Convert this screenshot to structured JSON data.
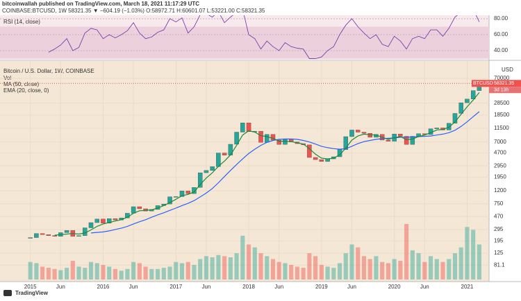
{
  "header": {
    "published": "bitcoinwallah published on TradingView.com, March 18, 2021 11:17:29 UTC",
    "symbol_line": "COINBASE:BTCUSD, 1W  58321.35  ▼ −604.19 (−1.03%)  O:58972.71  H:60601.07  L:53221.00  C:58321.35"
  },
  "footer": "TradingView",
  "chart_data": [
    {
      "type": "line",
      "title": "RSI (14, close)",
      "color": "#7b3fb0",
      "ylim": [
        28.7,
        84.3
      ],
      "yticks": [
        {
          "value": 80,
          "label": "80.00"
        },
        {
          "value": 60,
          "label": "60.00"
        },
        {
          "value": 40,
          "label": "40.00"
        }
      ],
      "band": [
        30,
        70
      ],
      "values": [
        null,
        null,
        null,
        38,
        42,
        47,
        55,
        40,
        44,
        62,
        68,
        66,
        55,
        60,
        56,
        60,
        65,
        75,
        62,
        55,
        57,
        63,
        66,
        80,
        76,
        81,
        62,
        70,
        85,
        86,
        82,
        89,
        75,
        82,
        88,
        92,
        60,
        55,
        42,
        52,
        45,
        40,
        50,
        45,
        43,
        42,
        30,
        30,
        32,
        40,
        45,
        60,
        72,
        80,
        70,
        62,
        55,
        60,
        48,
        45,
        58,
        52,
        42,
        55,
        58,
        55,
        66,
        66,
        58,
        68,
        82,
        88,
        90,
        92,
        76
      ]
    },
    {
      "type": "candlestick",
      "title": "Bitcoin / U.S. Dollar, 1W, COINBASE",
      "symbol": "BTCUSD",
      "last_price": 58321.35,
      "countdown": "3d 13h",
      "currency": "USD",
      "log_scale": true,
      "up_color": "#26a69a",
      "down_color": "#ef5350",
      "ylim": [
        52,
        110000
      ],
      "xlim": [
        -5,
        75.5
      ],
      "yticks": [
        70000,
        28500,
        18500,
        11500,
        7000,
        4700,
        2950,
        1950,
        1200,
        750,
        470,
        295,
        195,
        125,
        {
          "value": 81.1,
          "label": "81.1"
        }
      ],
      "xticks": [
        {
          "value": 0,
          "label": "2015"
        },
        {
          "value": 5,
          "label": "Jun"
        },
        {
          "value": 12,
          "label": "2016"
        },
        {
          "value": 17,
          "label": "Jun"
        },
        {
          "value": 24,
          "label": "2017"
        },
        {
          "value": 29,
          "label": "Jun"
        },
        {
          "value": 36,
          "label": "2018"
        },
        {
          "value": 41,
          "label": "Jun"
        },
        {
          "value": 48,
          "label": "2019"
        },
        {
          "value": 53,
          "label": "Jun"
        },
        {
          "value": 60,
          "label": "2020"
        },
        {
          "value": 65,
          "label": "Jun"
        },
        {
          "value": 72,
          "label": "2021"
        }
      ],
      "values": [
        220,
        255,
        245,
        236,
        230,
        263,
        285,
        230,
        236,
        313,
        378,
        430,
        370,
        437,
        416,
        448,
        531,
        673,
        624,
        575,
        609,
        700,
        742,
        963,
        970,
        1190,
        1080,
        1350,
        2300,
        2500,
        2870,
        4700,
        4340,
        6450,
        10000,
        14000,
        10200,
        10300,
        6900,
        9200,
        7500,
        6400,
        7700,
        7000,
        6600,
        6300,
        4000,
        3700,
        3450,
        3800,
        4100,
        5300,
        8500,
        10800,
        10000,
        9600,
        8300,
        9200,
        7500,
        7200,
        9350,
        8600,
        6400,
        8600,
        9450,
        9150,
        11300,
        11650,
        10800,
        13800,
        19700,
        29000,
        33100,
        45000,
        58321.35
      ],
      "series": [
        {
          "name": "Vol",
          "axis": "volume",
          "values": [
            30,
            28,
            22,
            20,
            18,
            16,
            20,
            32,
            22,
            20,
            30,
            28,
            25,
            22,
            18,
            15,
            18,
            30,
            28,
            22,
            18,
            18,
            20,
            22,
            30,
            28,
            30,
            25,
            35,
            40,
            38,
            42,
            40,
            38,
            45,
            75,
            60,
            55,
            45,
            40,
            35,
            30,
            28,
            25,
            22,
            20,
            45,
            40,
            25,
            22,
            20,
            28,
            45,
            60,
            55,
            40,
            35,
            40,
            30,
            28,
            35,
            32,
            95,
            50,
            45,
            30,
            40,
            35,
            30,
            35,
            45,
            55,
            90,
            85,
            60
          ]
        },
        {
          "name": "MA (50, close)",
          "color": "#2962ff",
          "values": [
            null,
            null,
            null,
            null,
            null,
            null,
            null,
            null,
            null,
            null,
            260,
            265,
            270,
            280,
            295,
            310,
            330,
            360,
            390,
            420,
            460,
            500,
            540,
            590,
            640,
            700,
            760,
            840,
            960,
            1100,
            1300,
            1600,
            2000,
            2500,
            3100,
            3800,
            4600,
            5400,
            6200,
            6900,
            7400,
            7700,
            7800,
            7800,
            7700,
            7400,
            7000,
            6500,
            6000,
            5700,
            5500,
            5400,
            5500,
            6000,
            6600,
            7100,
            7400,
            7700,
            7900,
            8000,
            8100,
            8300,
            8300,
            8400,
            8500,
            8600,
            8700,
            9000,
            9300,
            9800,
            10700,
            12300,
            14500,
            17500,
            21000
          ]
        },
        {
          "name": "EMA (20, close, 0)",
          "color": "#1b8a3a",
          "values": [
            null,
            null,
            null,
            null,
            240,
            245,
            250,
            255,
            250,
            260,
            290,
            330,
            360,
            380,
            400,
            420,
            460,
            530,
            580,
            590,
            600,
            640,
            700,
            780,
            880,
            1000,
            1050,
            1150,
            1500,
            1900,
            2300,
            2900,
            3500,
            4400,
            6200,
            9000,
            10500,
            10000,
            8800,
            8500,
            8000,
            7200,
            7200,
            7100,
            6800,
            6500,
            5500,
            4500,
            3900,
            3800,
            3900,
            4400,
            5600,
            7500,
            8700,
            9300,
            9100,
            9000,
            8300,
            7700,
            8200,
            8500,
            7600,
            7800,
            8500,
            9000,
            9800,
            10800,
            11000,
            11900,
            14500,
            19000,
            25000,
            32000,
            42000
          ]
        }
      ]
    }
  ]
}
